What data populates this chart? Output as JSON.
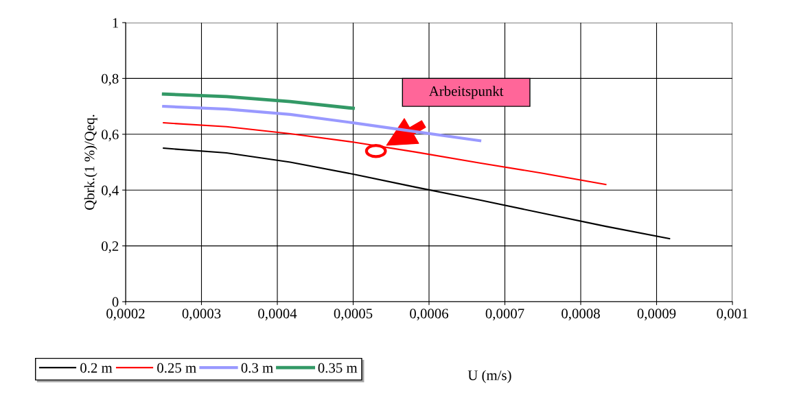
{
  "chart_data": {
    "type": "line",
    "ylabel": "Qbrk.(1 %)/Qeq.",
    "xlabel": "U (m/s)",
    "xlim": [
      0.0002,
      0.001
    ],
    "ylim": [
      0,
      1
    ],
    "xticks": [
      {
        "value": 0.0002,
        "label": "0,0002"
      },
      {
        "value": 0.0003,
        "label": "0,0003"
      },
      {
        "value": 0.0004,
        "label": "0,0004"
      },
      {
        "value": 0.0005,
        "label": "0,0005"
      },
      {
        "value": 0.0006,
        "label": "0,0006"
      },
      {
        "value": 0.0007,
        "label": "0,0007"
      },
      {
        "value": 0.0008,
        "label": "0,0008"
      },
      {
        "value": 0.0009,
        "label": "0,0009"
      },
      {
        "value": 0.001,
        "label": "0,001"
      }
    ],
    "yticks": [
      0,
      {
        "value": 0.2,
        "label": "0,2"
      },
      {
        "value": 0.4,
        "label": "0,4"
      },
      {
        "value": 0.6,
        "label": "0,6"
      },
      {
        "value": 0.8,
        "label": "0,8"
      },
      1
    ],
    "grid": true,
    "legend": "bottom",
    "marker": "none",
    "annotations": [
      "Arbeitspunkt"
    ],
    "series": [
      {
        "name": "0.2 m",
        "color": "#000000",
        "x": [
          0.00025,
          0.000333,
          0.000417,
          0.0005,
          0.000583,
          0.000667,
          0.00075,
          0.000833,
          0.000917
        ],
        "values": [
          0.55,
          0.533,
          0.5,
          0.457,
          0.41,
          0.364,
          0.317,
          0.27,
          0.226
        ]
      },
      {
        "name": "0.25 m",
        "color": "#ff0000",
        "x": [
          0.00025,
          0.000333,
          0.000417,
          0.0005,
          0.000583,
          0.000667,
          0.00075,
          0.000833
        ],
        "values": [
          0.641,
          0.627,
          0.602,
          0.572,
          0.536,
          0.497,
          0.46,
          0.42
        ]
      },
      {
        "name": "0.3 m",
        "color": "#9999ff",
        "x": [
          0.00025,
          0.000333,
          0.000417,
          0.0005,
          0.000583,
          0.000667
        ],
        "values": [
          0.7,
          0.69,
          0.671,
          0.641,
          0.609,
          0.577
        ]
      },
      {
        "name": "0.35 m",
        "color": "#339966",
        "x": [
          0.00025,
          0.000333,
          0.000417,
          0.0005
        ],
        "values": [
          0.744,
          0.735,
          0.717,
          0.693
        ]
      }
    ]
  }
}
